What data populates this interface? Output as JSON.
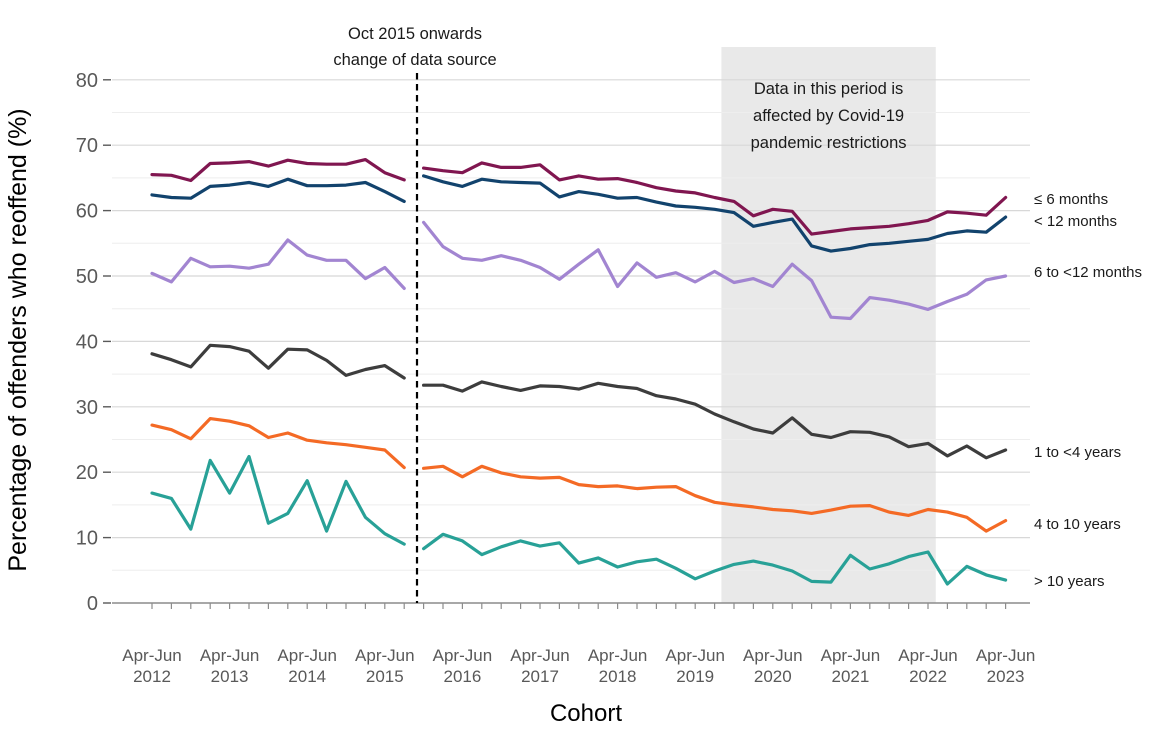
{
  "figure": {
    "kind": "line-chart",
    "background": "#ffffff"
  },
  "chart_data": {
    "type": "line",
    "title": "",
    "xlabel": "Cohort",
    "ylabel": "Percentage of offenders who reoffend (%)",
    "ylim": [
      0,
      80
    ],
    "y_major_ticks": [
      0,
      10,
      20,
      30,
      40,
      50,
      60,
      70,
      80
    ],
    "y_minor_ticks": [
      5,
      15,
      25,
      35,
      45,
      55,
      65,
      75
    ],
    "grid": "horizontal-major-and-minor",
    "x_axis": {
      "quarters_total": 45,
      "label_every_n_quarters": 4,
      "tick_label_line1": "Apr-Jun",
      "tick_label_years": [
        "2012",
        "2013",
        "2014",
        "2015",
        "2016",
        "2017",
        "2018",
        "2019",
        "2020",
        "2021",
        "2022",
        "2023"
      ]
    },
    "break_line": {
      "at_quarter": 13.66,
      "style": "dashed-vertical",
      "color": "#000000",
      "annotation_lines": [
        "Oct 2015 onwards",
        "change of data source"
      ]
    },
    "covid_band": {
      "start_quarter": 29.35,
      "end_quarter": 40.4,
      "fill": "#e9e9e9",
      "annotation_lines": [
        "Data in this period is",
        "affected by Covid-19",
        "pandemic restrictions"
      ]
    },
    "series": [
      {
        "name": "≤ 6 months",
        "color": "#801650",
        "label_v": 61.8,
        "pre_break": [
          65.5,
          65.4,
          64.6,
          67.2,
          67.3,
          67.5,
          66.8,
          67.7,
          67.2,
          67.1,
          67.1,
          67.8,
          65.8,
          64.7
        ],
        "post_break": [
          66.5,
          66.1,
          65.8,
          67.3,
          66.6,
          66.6,
          67.0,
          64.7,
          65.3,
          64.8,
          64.9,
          64.3,
          63.5,
          63.0,
          62.7,
          62.0,
          61.4,
          59.2,
          60.2,
          59.9,
          56.4,
          56.8,
          57.2,
          57.4,
          57.6,
          58.0,
          58.5,
          59.8,
          59.6,
          59.3,
          62.0
        ]
      },
      {
        "name": "< 12 months",
        "color": "#12436D",
        "label_v": 58.4,
        "pre_break": [
          62.4,
          62.0,
          61.9,
          63.7,
          63.9,
          64.3,
          63.7,
          64.8,
          63.8,
          63.8,
          63.9,
          64.3,
          62.9,
          61.4
        ],
        "post_break": [
          65.3,
          64.4,
          63.7,
          64.8,
          64.4,
          64.3,
          64.2,
          62.1,
          62.9,
          62.5,
          61.9,
          62.0,
          61.3,
          60.7,
          60.5,
          60.2,
          59.7,
          57.6,
          58.2,
          58.7,
          54.6,
          53.8,
          54.2,
          54.8,
          55.0,
          55.3,
          55.6,
          56.5,
          56.9,
          56.7,
          59.0
        ]
      },
      {
        "name": "6 to <12 months",
        "color": "#A285D1",
        "label_v": 50.6,
        "pre_break": [
          50.4,
          49.1,
          52.7,
          51.4,
          51.5,
          51.2,
          51.8,
          55.5,
          53.2,
          52.4,
          52.4,
          49.6,
          51.3,
          48.1
        ],
        "post_break": [
          58.2,
          54.5,
          52.7,
          52.4,
          53.1,
          52.4,
          51.3,
          49.5,
          51.8,
          54.0,
          48.4,
          52.0,
          49.8,
          50.5,
          49.1,
          50.7,
          49.0,
          49.6,
          48.4,
          51.8,
          49.3,
          43.7,
          43.5,
          46.7,
          46.3,
          45.7,
          44.9,
          46.1,
          47.2,
          49.4,
          50.0
        ]
      },
      {
        "name": "1 to <4 years",
        "color": "#3D3D3D",
        "label_v": 23.1,
        "pre_break": [
          38.1,
          37.2,
          36.1,
          39.4,
          39.2,
          38.5,
          35.9,
          38.8,
          38.7,
          37.1,
          34.8,
          35.7,
          36.3,
          34.4
        ],
        "post_break": [
          33.3,
          33.3,
          32.4,
          33.8,
          33.1,
          32.5,
          33.2,
          33.1,
          32.7,
          33.6,
          33.1,
          32.8,
          31.7,
          31.2,
          30.4,
          28.9,
          27.7,
          26.6,
          26.0,
          28.3,
          25.8,
          25.3,
          26.2,
          26.1,
          25.4,
          23.9,
          24.4,
          22.5,
          24.0,
          22.2,
          23.4
        ]
      },
      {
        "name": "4 to 10 years",
        "color": "#F46A25",
        "label_v": 12.1,
        "pre_break": [
          27.2,
          26.5,
          25.1,
          28.2,
          27.8,
          27.1,
          25.3,
          26.0,
          24.9,
          24.5,
          24.2,
          23.8,
          23.4,
          20.7
        ],
        "post_break": [
          20.6,
          20.9,
          19.3,
          20.9,
          19.9,
          19.3,
          19.1,
          19.2,
          18.1,
          17.8,
          17.9,
          17.5,
          17.7,
          17.8,
          16.4,
          15.4,
          15.0,
          14.7,
          14.3,
          14.1,
          13.7,
          14.2,
          14.8,
          14.9,
          13.9,
          13.4,
          14.3,
          13.9,
          13.1,
          11.0,
          12.6
        ]
      },
      {
        "name": "> 10 years",
        "color": "#28A197",
        "label_v": 3.4,
        "pre_break": [
          16.8,
          16.0,
          11.3,
          21.8,
          16.8,
          22.4,
          12.2,
          13.7,
          18.7,
          11.0,
          18.6,
          13.1,
          10.6,
          9.0
        ],
        "post_break": [
          8.3,
          10.5,
          9.5,
          7.4,
          8.6,
          9.5,
          8.7,
          9.2,
          6.1,
          6.9,
          5.5,
          6.3,
          6.7,
          5.3,
          3.7,
          4.9,
          5.9,
          6.4,
          5.8,
          4.9,
          3.3,
          3.2,
          7.3,
          5.2,
          6.0,
          7.1,
          7.8,
          2.9,
          5.6,
          4.3,
          3.5
        ]
      }
    ],
    "colors": {
      "axis_line": "#8c8c8c",
      "tick_text": "#595959",
      "major_grid": "#d8d8d8",
      "minor_grid": "#eeeeee",
      "annotation_text": "#1a1a1a",
      "series_label_text": "#1a1a1a",
      "axis_title_text": "#000000"
    },
    "legend_position": "direct-labels-right"
  }
}
